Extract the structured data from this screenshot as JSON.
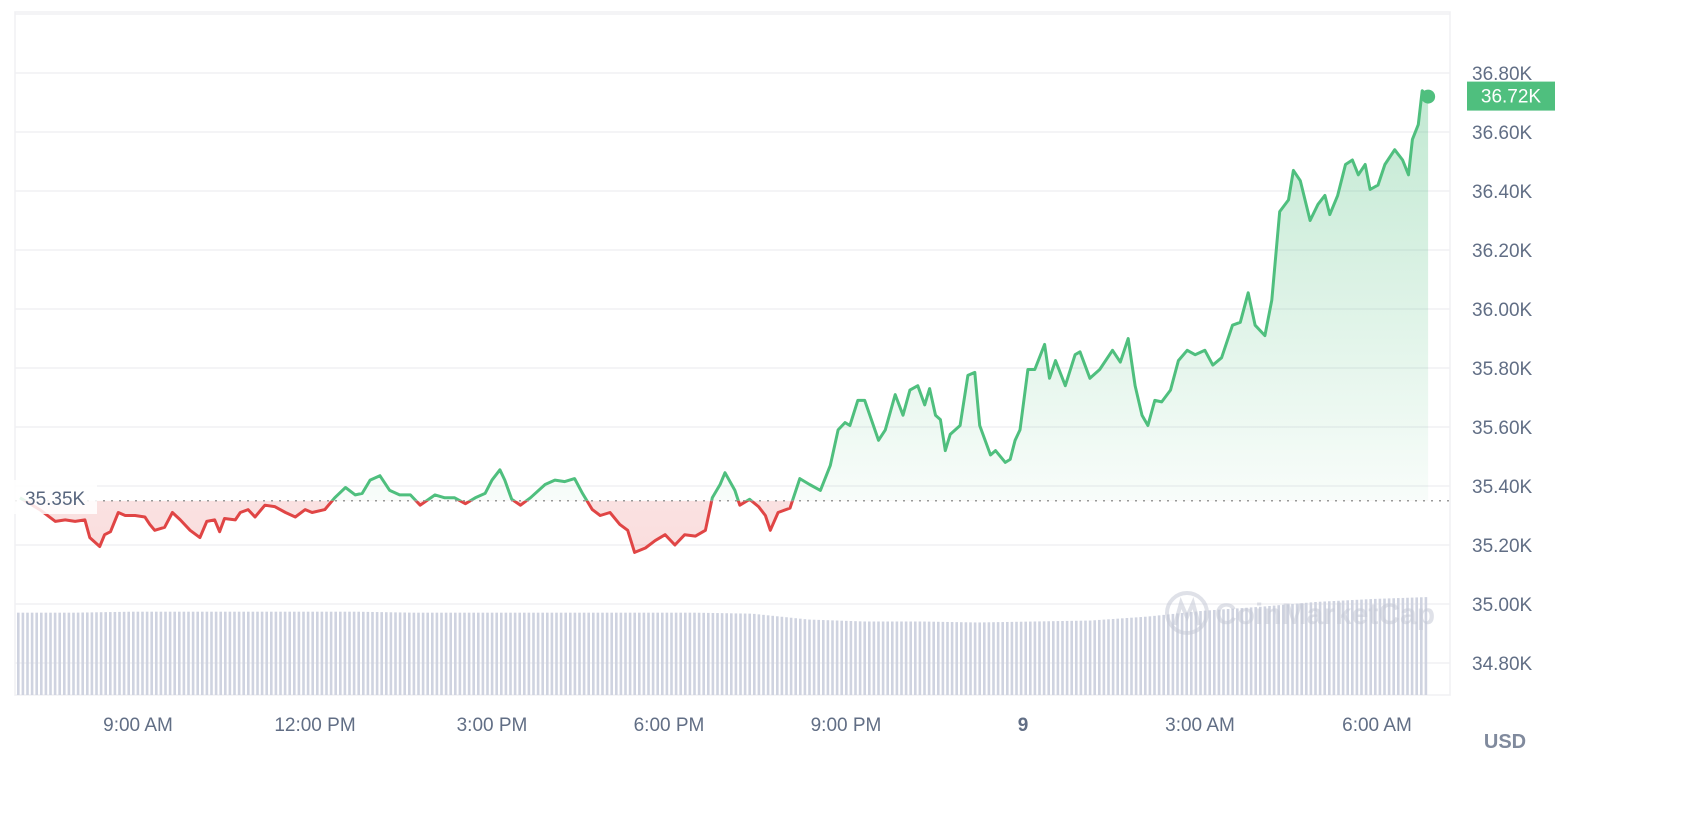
{
  "chart_data": {
    "type": "line",
    "title": "",
    "xlabel": "",
    "ylabel": "",
    "currency_label": "USD",
    "ylim": [
      34700,
      37000
    ],
    "y_ticks": [
      "34.80K",
      "35.00K",
      "35.20K",
      "35.40K",
      "35.60K",
      "35.80K",
      "36.00K",
      "36.20K",
      "36.40K",
      "36.60K",
      "36.80K"
    ],
    "y_tick_values": [
      34800,
      35000,
      35200,
      35400,
      35600,
      35800,
      36000,
      36200,
      36400,
      36600,
      36800
    ],
    "x_ticks": [
      {
        "label": "9:00 AM",
        "time": "09:00"
      },
      {
        "label": "12:00 PM",
        "time": "12:00"
      },
      {
        "label": "3:00 PM",
        "time": "15:00"
      },
      {
        "label": "6:00 PM",
        "time": "18:00"
      },
      {
        "label": "9:00 PM",
        "time": "21:00"
      },
      {
        "label": "9",
        "time": "24:00",
        "bold": true
      },
      {
        "label": "3:00 AM",
        "time": "27:00"
      },
      {
        "label": "6:00 AM",
        "time": "30:00"
      }
    ],
    "reference_price": 35350,
    "reference_label": "35.35K",
    "current_price": 36720,
    "current_label": "36.72K",
    "grid": true,
    "colors": {
      "up": "#4fbf7e",
      "down": "#e04545",
      "grid": "#f0f0f3",
      "volume": "#cfd3e0",
      "label": "#616e85",
      "tag": "#4fbf7e"
    },
    "watermark": "CoinMarketCap",
    "series": [
      {
        "points": [
          [
            "07:00",
            35360
          ],
          [
            "07:20",
            35320
          ],
          [
            "07:36",
            35280
          ],
          [
            "07:46",
            35285
          ],
          [
            "07:56",
            35280
          ],
          [
            "08:06",
            35285
          ],
          [
            "08:11",
            35225
          ],
          [
            "08:21",
            35195
          ],
          [
            "08:26",
            35235
          ],
          [
            "08:32",
            35245
          ],
          [
            "08:40",
            35310
          ],
          [
            "08:47",
            35300
          ],
          [
            "08:57",
            35300
          ],
          [
            "09:07",
            35295
          ],
          [
            "09:12",
            35270
          ],
          [
            "09:17",
            35250
          ],
          [
            "09:27",
            35260
          ],
          [
            "09:35",
            35310
          ],
          [
            "09:43",
            35285
          ],
          [
            "09:53",
            35250
          ],
          [
            "10:03",
            35225
          ],
          [
            "10:10",
            35280
          ],
          [
            "10:18",
            35285
          ],
          [
            "10:23",
            35245
          ],
          [
            "10:28",
            35290
          ],
          [
            "10:39",
            35285
          ],
          [
            "10:44",
            35310
          ],
          [
            "10:52",
            35320
          ],
          [
            "10:59",
            35295
          ],
          [
            "11:09",
            35335
          ],
          [
            "11:19",
            35330
          ],
          [
            "11:30",
            35310
          ],
          [
            "11:40",
            35295
          ],
          [
            "11:50",
            35320
          ],
          [
            "11:57",
            35310
          ],
          [
            "12:10",
            35320
          ],
          [
            "12:20",
            35360
          ],
          [
            "12:31",
            35395
          ],
          [
            "12:41",
            35370
          ],
          [
            "12:48",
            35375
          ],
          [
            "12:56",
            35420
          ],
          [
            "13:06",
            35435
          ],
          [
            "13:16",
            35385
          ],
          [
            "13:26",
            35370
          ],
          [
            "13:37",
            35370
          ],
          [
            "13:47",
            35335
          ],
          [
            "14:02",
            35370
          ],
          [
            "14:12",
            35360
          ],
          [
            "14:22",
            35360
          ],
          [
            "14:33",
            35340
          ],
          [
            "14:43",
            35360
          ],
          [
            "14:53",
            35375
          ],
          [
            "15:00",
            35420
          ],
          [
            "15:08",
            35455
          ],
          [
            "15:13",
            35420
          ],
          [
            "15:20",
            35355
          ],
          [
            "15:29",
            35335
          ],
          [
            "15:39",
            35360
          ],
          [
            "15:54",
            35405
          ],
          [
            "16:04",
            35420
          ],
          [
            "16:14",
            35415
          ],
          [
            "16:24",
            35425
          ],
          [
            "16:32",
            35375
          ],
          [
            "16:42",
            35320
          ],
          [
            "16:50",
            35300
          ],
          [
            "17:00",
            35310
          ],
          [
            "17:10",
            35270
          ],
          [
            "17:18",
            35250
          ],
          [
            "17:25",
            35175
          ],
          [
            "17:36",
            35190
          ],
          [
            "17:46",
            35215
          ],
          [
            "17:56",
            35235
          ],
          [
            "18:06",
            35200
          ],
          [
            "18:16",
            35235
          ],
          [
            "18:27",
            35230
          ],
          [
            "18:37",
            35250
          ],
          [
            "18:44",
            35360
          ],
          [
            "18:52",
            35405
          ],
          [
            "18:57",
            35445
          ],
          [
            "19:07",
            35385
          ],
          [
            "19:12",
            35335
          ],
          [
            "19:22",
            35355
          ],
          [
            "19:31",
            35330
          ],
          [
            "19:38",
            35300
          ],
          [
            "19:43",
            35250
          ],
          [
            "19:51",
            35310
          ],
          [
            "20:03",
            35325
          ],
          [
            "20:13",
            35425
          ],
          [
            "20:23",
            35405
          ],
          [
            "20:34",
            35385
          ],
          [
            "20:44",
            35470
          ],
          [
            "20:52",
            35590
          ],
          [
            "20:59",
            35615
          ],
          [
            "21:04",
            35605
          ],
          [
            "21:12",
            35690
          ],
          [
            "21:19",
            35690
          ],
          [
            "21:33",
            35555
          ],
          [
            "21:40",
            35590
          ],
          [
            "21:50",
            35710
          ],
          [
            "21:58",
            35640
          ],
          [
            "22:05",
            35725
          ],
          [
            "22:13",
            35740
          ],
          [
            "22:20",
            35675
          ],
          [
            "22:25",
            35730
          ],
          [
            "22:31",
            35640
          ],
          [
            "22:36",
            35625
          ],
          [
            "22:41",
            35520
          ],
          [
            "22:46",
            35575
          ],
          [
            "22:56",
            35605
          ],
          [
            "23:04",
            35775
          ],
          [
            "23:11",
            35785
          ],
          [
            "23:16",
            35605
          ],
          [
            "23:27",
            35505
          ],
          [
            "23:32",
            35520
          ],
          [
            "23:42",
            35480
          ],
          [
            "23:47",
            35490
          ],
          [
            "23:52",
            35555
          ],
          [
            "23:57",
            35590
          ],
          [
            "00:05",
            35795
          ],
          [
            "00:12",
            35795
          ],
          [
            "00:22",
            35880
          ],
          [
            "00:27",
            35765
          ],
          [
            "00:33",
            35825
          ],
          [
            "00:43",
            35740
          ],
          [
            "00:53",
            35845
          ],
          [
            "00:58",
            35855
          ],
          [
            "01:08",
            35765
          ],
          [
            "01:18",
            35795
          ],
          [
            "01:31",
            35860
          ],
          [
            "01:39",
            35820
          ],
          [
            "01:47",
            35900
          ],
          [
            "01:54",
            35740
          ],
          [
            "02:01",
            35640
          ],
          [
            "02:07",
            35605
          ],
          [
            "02:14",
            35690
          ],
          [
            "02:21",
            35685
          ],
          [
            "02:30",
            35725
          ],
          [
            "02:38",
            35825
          ],
          [
            "02:47",
            35860
          ],
          [
            "02:55",
            35845
          ],
          [
            "03:05",
            35860
          ],
          [
            "03:13",
            35810
          ],
          [
            "03:22",
            35835
          ],
          [
            "03:33",
            35945
          ],
          [
            "03:41",
            35955
          ],
          [
            "03:49",
            36055
          ],
          [
            "03:56",
            35945
          ],
          [
            "04:06",
            35910
          ],
          [
            "04:13",
            36030
          ],
          [
            "04:21",
            36330
          ],
          [
            "04:30",
            36370
          ],
          [
            "04:35",
            36470
          ],
          [
            "04:42",
            36435
          ],
          [
            "04:52",
            36300
          ],
          [
            "05:00",
            36355
          ],
          [
            "05:07",
            36385
          ],
          [
            "05:12",
            36320
          ],
          [
            "05:20",
            36385
          ],
          [
            "05:28",
            36490
          ],
          [
            "05:35",
            36505
          ],
          [
            "05:41",
            36455
          ],
          [
            "05:48",
            36490
          ],
          [
            "05:53",
            36405
          ],
          [
            "06:01",
            36420
          ],
          [
            "06:08",
            36490
          ],
          [
            "06:18",
            36540
          ],
          [
            "06:26",
            36505
          ],
          [
            "06:32",
            36455
          ],
          [
            "06:36",
            36575
          ],
          [
            "06:42",
            36625
          ],
          [
            "06:46",
            36740
          ],
          [
            "06:52",
            36720
          ]
        ]
      }
    ],
    "volume_relative": [
      0.84,
      0.84,
      0.85,
      0.85,
      0.85,
      0.85,
      0.85,
      0.84,
      0.84,
      0.84,
      0.84,
      0.84,
      0.84,
      0.83,
      0.77,
      0.75,
      0.75,
      0.74,
      0.75,
      0.76,
      0.8,
      0.86,
      0.9,
      0.95,
      0.98,
      1.0
    ]
  }
}
